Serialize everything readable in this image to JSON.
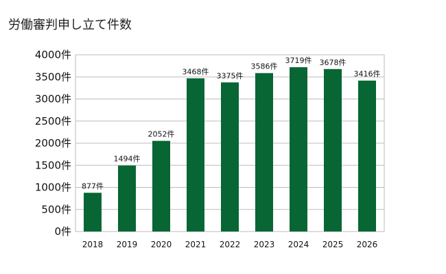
{
  "chart_data": {
    "type": "bar",
    "title": "労働審判申し立て件数",
    "categories": [
      "2018",
      "2019",
      "2020",
      "2021",
      "2022",
      "2023",
      "2024",
      "2025",
      "2026"
    ],
    "values": [
      877,
      1494,
      2052,
      3468,
      3375,
      3586,
      3719,
      3678,
      3416
    ],
    "data_labels": [
      "877件",
      "1494件",
      "2052件",
      "3468件",
      "3375件",
      "3586件",
      "3719件",
      "3678件",
      "3416件"
    ],
    "yticks": [
      0,
      500,
      1000,
      1500,
      2000,
      2500,
      3000,
      3500,
      4000
    ],
    "ytick_labels": [
      "0件",
      "500件",
      "1000件",
      "1500件",
      "2000件",
      "2500件",
      "3000件",
      "3500件",
      "4000件"
    ],
    "ylim": [
      0,
      4000
    ],
    "grid": true,
    "legend": "none",
    "bar_color": "#076633",
    "grid_color": "#bbbbbb"
  }
}
